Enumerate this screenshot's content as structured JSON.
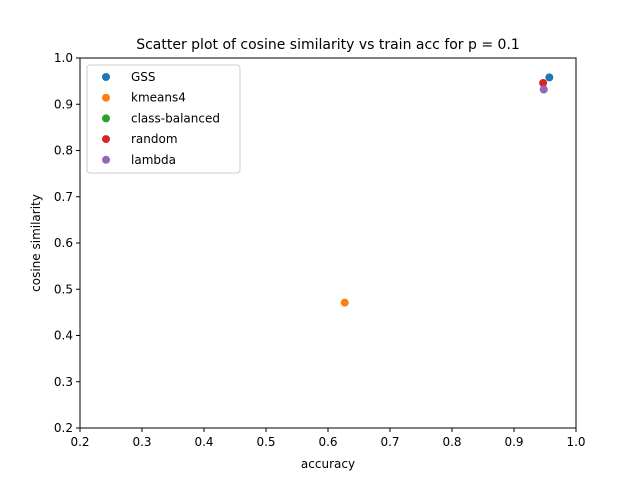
{
  "chart_data": {
    "type": "scatter",
    "title": "Scatter plot of cosine similarity vs train acc for p = 0.1",
    "xlabel": "accuracy",
    "ylabel": "cosine similarity",
    "xlim": [
      0.2,
      1.0
    ],
    "ylim": [
      0.2,
      1.0
    ],
    "xticks": [
      0.2,
      0.3,
      0.4,
      0.5,
      0.6,
      0.7,
      0.8,
      0.9,
      1.0
    ],
    "yticks": [
      0.2,
      0.3,
      0.4,
      0.5,
      0.6,
      0.7,
      0.8,
      0.9,
      1.0
    ],
    "xtick_labels": [
      "0.2",
      "0.3",
      "0.4",
      "0.5",
      "0.6",
      "0.7",
      "0.8",
      "0.9",
      "1.0"
    ],
    "ytick_labels": [
      "0.2",
      "0.3",
      "0.4",
      "0.5",
      "0.6",
      "0.7",
      "0.8",
      "0.9",
      "1.0"
    ],
    "grid": false,
    "legend_position": "top-left",
    "series": [
      {
        "name": "GSS",
        "color": "#1f77b4",
        "points": [
          {
            "x": 0.957,
            "y": 0.958
          }
        ]
      },
      {
        "name": "kmeans4",
        "color": "#ff7f0e",
        "points": [
          {
            "x": 0.627,
            "y": 0.471
          }
        ]
      },
      {
        "name": "class-balanced",
        "color": "#2ca02c",
        "points": [
          {
            "x": 0.948,
            "y": 0.932
          }
        ]
      },
      {
        "name": "random",
        "color": "#d62728",
        "points": [
          {
            "x": 0.947,
            "y": 0.946
          }
        ]
      },
      {
        "name": "lambda",
        "color": "#9467bd",
        "points": [
          {
            "x": 0.948,
            "y": 0.932
          }
        ]
      }
    ]
  }
}
